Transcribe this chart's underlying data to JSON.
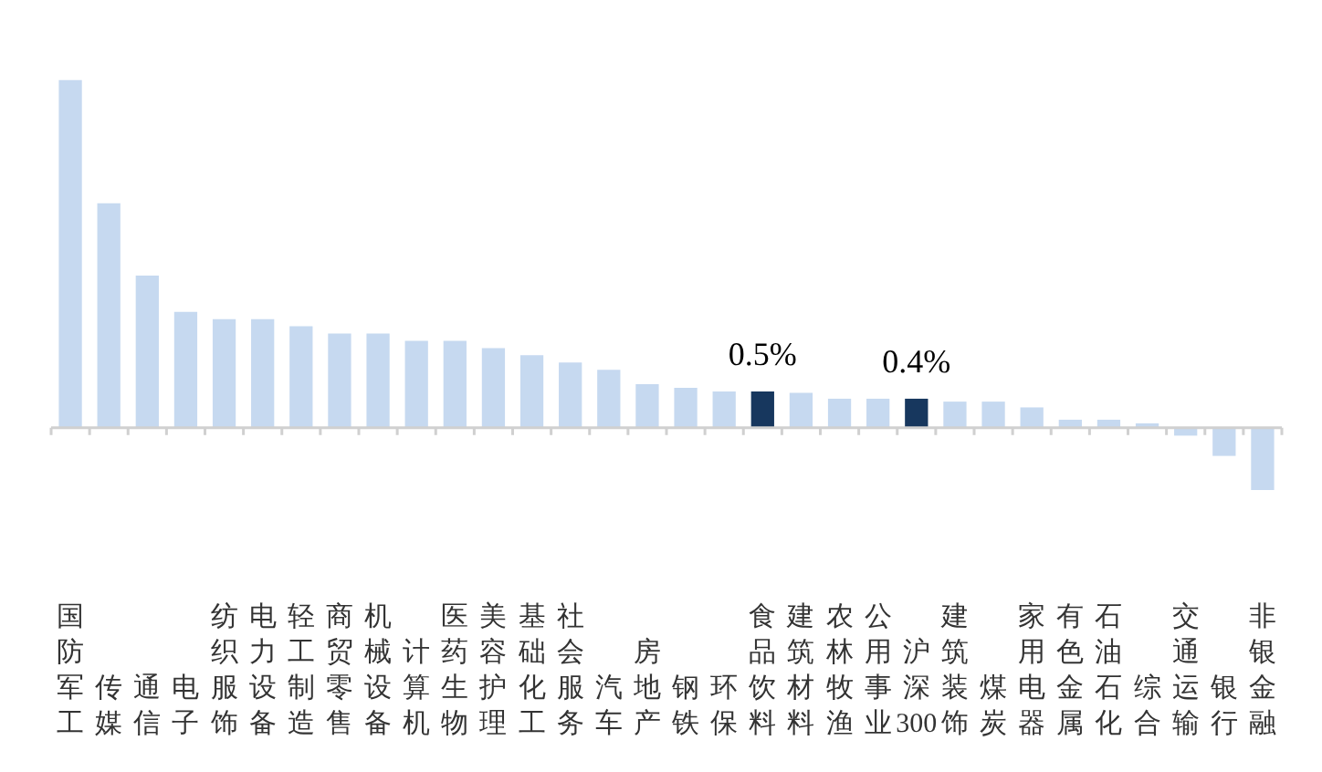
{
  "chart_data": {
    "type": "bar",
    "categories": [
      "国防军工",
      "传媒",
      "通信",
      "电子",
      "纺织服饰",
      "电力设备",
      "轻工制造",
      "商贸零售",
      "机械设备",
      "计算机",
      "医药生物",
      "美容护理",
      "基础化工",
      "社会服务",
      "汽车",
      "房地产",
      "钢铁",
      "环保",
      "食品饮料",
      "建筑材料",
      "农林牧渔",
      "公用事业",
      "沪深300",
      "建筑装饰",
      "煤炭",
      "家用电器",
      "有色金属",
      "石油石化",
      "综合",
      "交通运输",
      "银行",
      "非银金融"
    ],
    "values": [
      4.8,
      3.1,
      2.1,
      1.6,
      1.5,
      1.5,
      1.4,
      1.3,
      1.3,
      1.2,
      1.2,
      1.1,
      1.0,
      0.9,
      0.8,
      0.6,
      0.55,
      0.5,
      0.5,
      0.48,
      0.4,
      0.4,
      0.4,
      0.36,
      0.36,
      0.28,
      0.11,
      0.11,
      0.06,
      -0.11,
      -0.39,
      -0.86
    ],
    "colors": [
      "#c6d9f0",
      "#c6d9f0",
      "#c6d9f0",
      "#c6d9f0",
      "#c6d9f0",
      "#c6d9f0",
      "#c6d9f0",
      "#c6d9f0",
      "#c6d9f0",
      "#c6d9f0",
      "#c6d9f0",
      "#c6d9f0",
      "#c6d9f0",
      "#c6d9f0",
      "#c6d9f0",
      "#c6d9f0",
      "#c6d9f0",
      "#c6d9f0",
      "#17375e",
      "#c6d9f0",
      "#c6d9f0",
      "#c6d9f0",
      "#17375e",
      "#c6d9f0",
      "#c6d9f0",
      "#c6d9f0",
      "#c6d9f0",
      "#c6d9f0",
      "#c6d9f0",
      "#c6d9f0",
      "#c6d9f0",
      "#c6d9f0"
    ],
    "value_labels": [
      null,
      null,
      null,
      null,
      null,
      null,
      null,
      null,
      null,
      null,
      null,
      null,
      null,
      null,
      null,
      null,
      null,
      null,
      "0.5%",
      null,
      null,
      null,
      "0.4%",
      null,
      null,
      null,
      null,
      null,
      null,
      null,
      null,
      null
    ],
    "grid": false,
    "legend": false
  }
}
